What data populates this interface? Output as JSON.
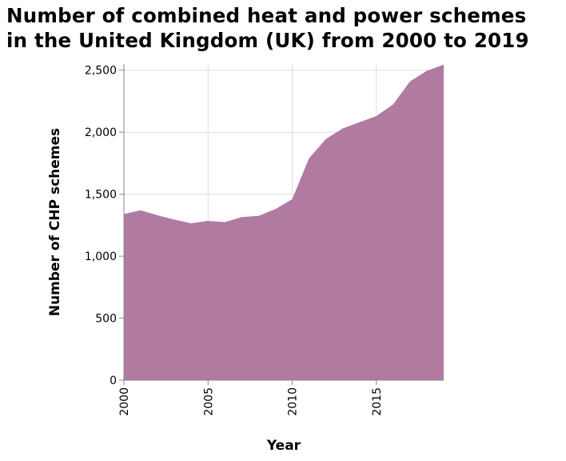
{
  "chart_data": {
    "type": "area",
    "title": "Number of combined heat and power schemes in the United Kingdom (UK) from 2000 to 2019",
    "title_lines": [
      "Number of combined heat and power schemes",
      "in the United Kingdom (UK) from 2000 to 2019"
    ],
    "xlabel": "Year",
    "ylabel": "Number of CHP schemes",
    "x": [
      2000,
      2001,
      2002,
      2003,
      2004,
      2005,
      2006,
      2007,
      2008,
      2009,
      2010,
      2011,
      2012,
      2013,
      2014,
      2015,
      2016,
      2017,
      2018,
      2019
    ],
    "values": [
      1340,
      1370,
      1330,
      1295,
      1265,
      1285,
      1275,
      1315,
      1325,
      1380,
      1460,
      1790,
      1945,
      2030,
      2080,
      2130,
      2225,
      2410,
      2495,
      2545
    ],
    "xlim": [
      2000,
      2019
    ],
    "ylim": [
      0,
      2550
    ],
    "x_ticks": [
      2000,
      2005,
      2010,
      2015
    ],
    "x_tick_labels": [
      "2000",
      "2005",
      "2010",
      "2015"
    ],
    "y_ticks": [
      0,
      500,
      1000,
      1500,
      2000,
      2500
    ],
    "y_tick_labels": [
      "0",
      "500",
      "1,000",
      "1,500",
      "2,000",
      "2,500"
    ],
    "grid": true,
    "fill_color": "#b07aa1"
  }
}
